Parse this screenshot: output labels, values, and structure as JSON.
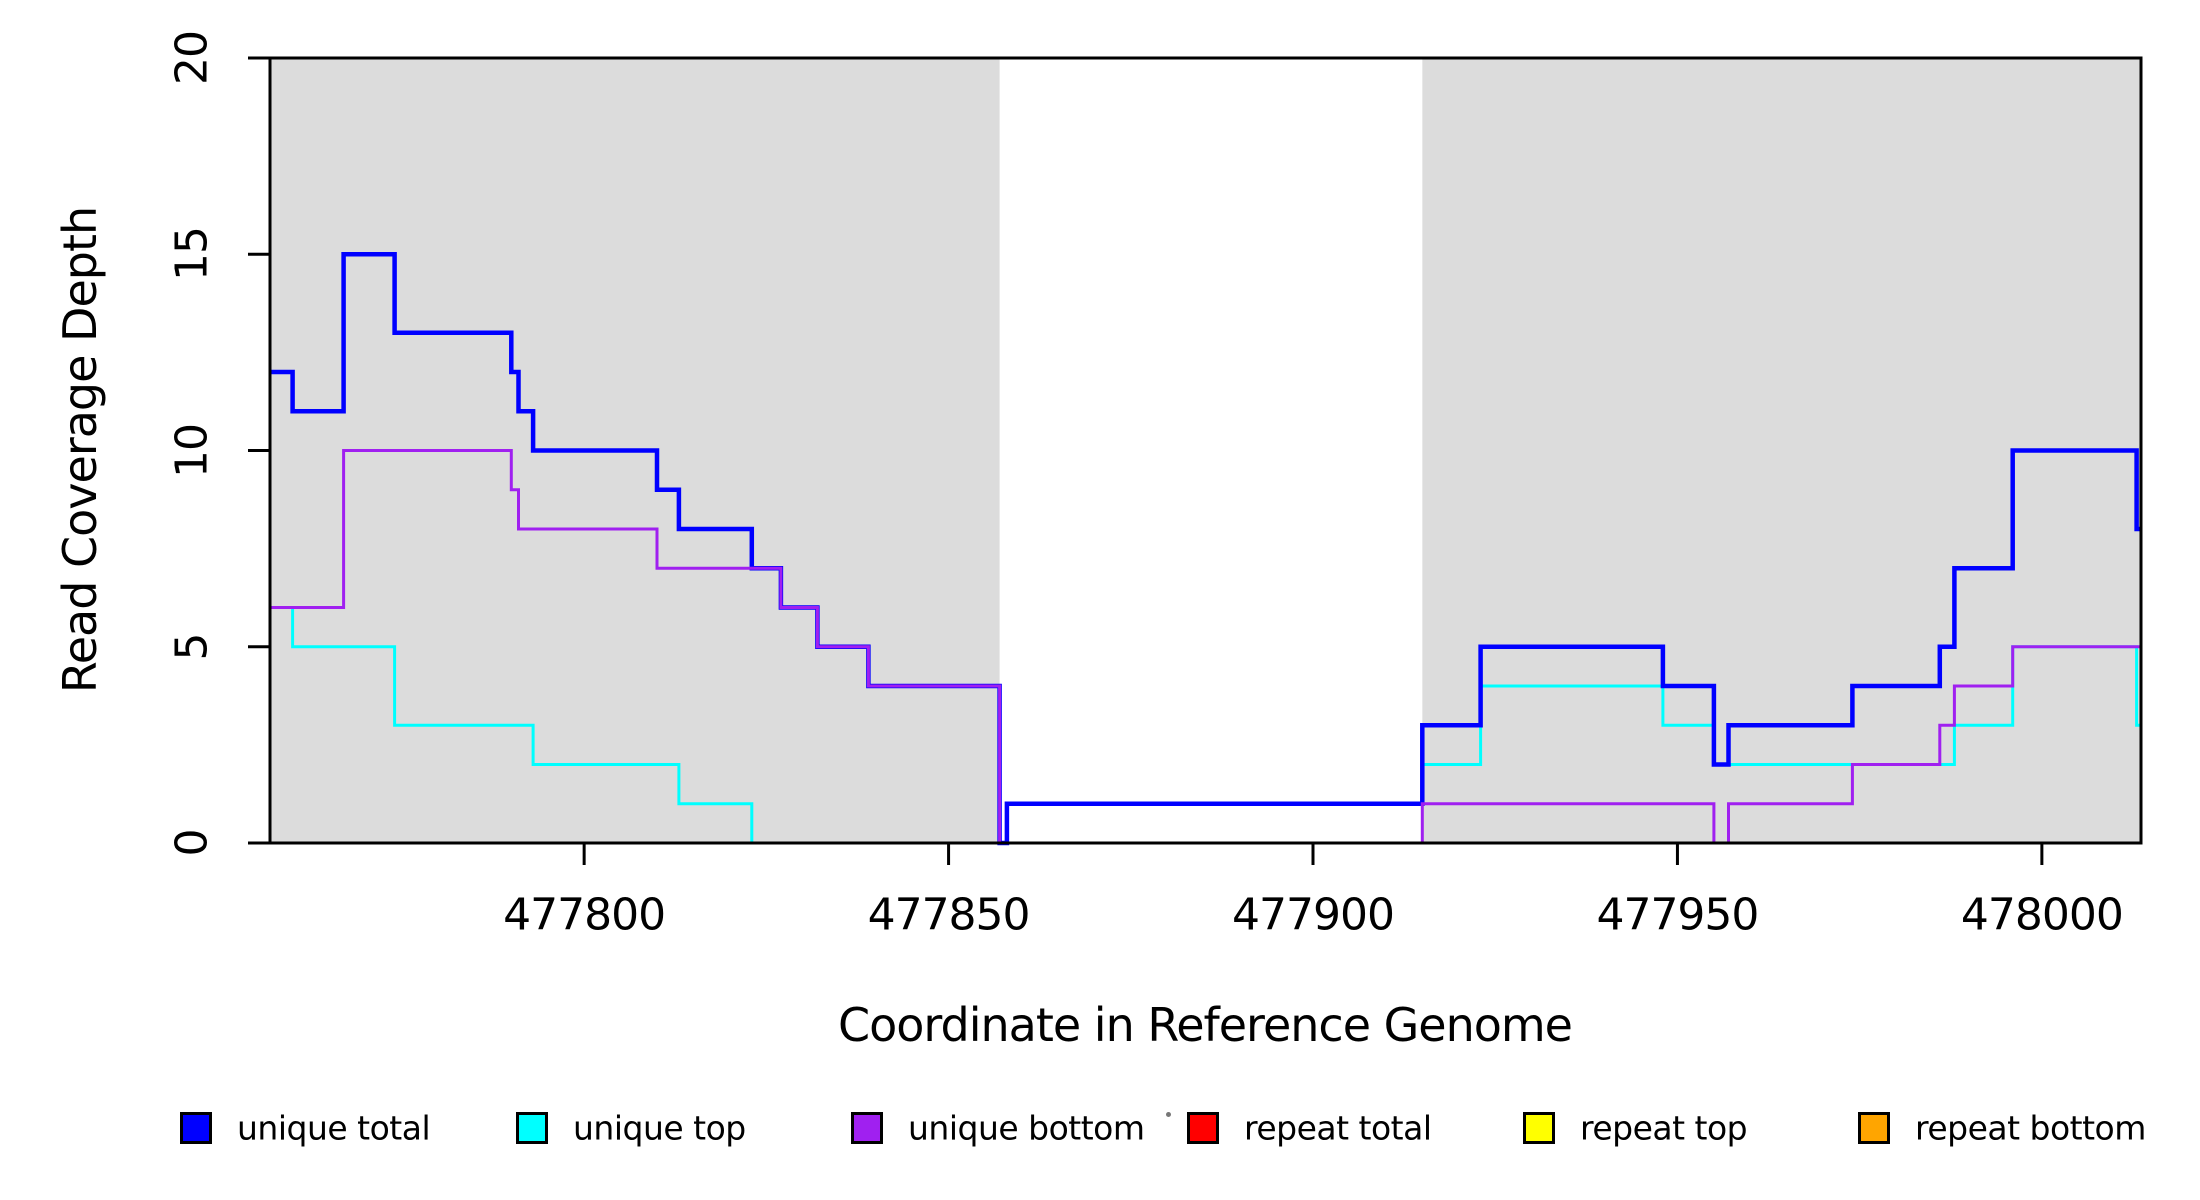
{
  "chart_data": {
    "type": "line",
    "subtype": "step-coverage",
    "title": "",
    "xlabel": "Coordinate in Reference Genome",
    "ylabel": "Read Coverage Depth",
    "xlim": [
      477756.9,
      478013.6
    ],
    "ylim": [
      0,
      20
    ],
    "grid": false,
    "x_ticks": [
      477800,
      477850,
      477900,
      477950,
      478000
    ],
    "x_tick_labels": [
      "477800",
      "477850",
      "477900",
      "477950",
      "478000"
    ],
    "y_ticks": [
      0,
      5,
      10,
      15,
      20
    ],
    "y_tick_labels": [
      "0",
      "5",
      "10",
      "15",
      "20"
    ],
    "shaded_regions": {
      "color": "#DCDCDC",
      "note": "uniquely-mappable regions shaded gray; middle gap is unshaded",
      "bands": [
        [
          477756.9,
          477857
        ],
        [
          477915,
          478013.6
        ]
      ]
    },
    "draw_order": [
      "unique_top",
      "unique_total",
      "repeat_total",
      "repeat_top",
      "repeat_bottom",
      "unique_bottom"
    ],
    "series": {
      "unique_total": {
        "legend_label": "unique total",
        "color": "#0000FF",
        "line_width": 4.5,
        "end_x": 478013.6,
        "points": [
          [
            477756.9,
            12
          ],
          [
            477760,
            11
          ],
          [
            477767,
            15
          ],
          [
            477774,
            13
          ],
          [
            477790,
            12
          ],
          [
            477791,
            11
          ],
          [
            477793,
            10
          ],
          [
            477810,
            9
          ],
          [
            477813,
            8
          ],
          [
            477823,
            7
          ],
          [
            477827,
            6
          ],
          [
            477832,
            5
          ],
          [
            477839,
            4
          ],
          [
            477857,
            0
          ],
          [
            477858,
            1
          ],
          [
            477915,
            3
          ],
          [
            477923,
            5
          ],
          [
            477948,
            4
          ],
          [
            477955,
            2
          ],
          [
            477957,
            3
          ],
          [
            477974,
            4
          ],
          [
            477986,
            5
          ],
          [
            477988,
            7
          ],
          [
            477996,
            10
          ],
          [
            478013,
            8
          ]
        ]
      },
      "unique_top": {
        "legend_label": "unique top",
        "color": "#00FFFF",
        "line_width": 3,
        "end_x": 478013.6,
        "points": [
          [
            477756.9,
            6
          ],
          [
            477760,
            5
          ],
          [
            477774,
            3
          ],
          [
            477793,
            2
          ],
          [
            477813,
            1
          ],
          [
            477823,
            0
          ],
          [
            477858,
            1
          ],
          [
            477915,
            2
          ],
          [
            477923,
            4
          ],
          [
            477948,
            3
          ],
          [
            477955,
            2
          ],
          [
            477988,
            3
          ],
          [
            477996,
            5
          ],
          [
            478013,
            3
          ]
        ]
      },
      "unique_bottom": {
        "legend_label": "unique bottom",
        "color": "#A020F0",
        "line_width": 3,
        "end_x": 478013.6,
        "points": [
          [
            477756.9,
            6
          ],
          [
            477767,
            10
          ],
          [
            477790,
            9
          ],
          [
            477791,
            8
          ],
          [
            477810,
            7
          ],
          [
            477827,
            6
          ],
          [
            477832,
            5
          ],
          [
            477839,
            4
          ],
          [
            477857,
            0
          ],
          [
            477915,
            1
          ],
          [
            477955,
            0
          ],
          [
            477957,
            1
          ],
          [
            477974,
            2
          ],
          [
            477986,
            3
          ],
          [
            477988,
            4
          ],
          [
            477996,
            5
          ]
        ]
      },
      "repeat_total": {
        "legend_label": "repeat total",
        "color": "#FF0000",
        "line_width": 3,
        "end_x": 478013.6,
        "points": [
          [
            477756.9,
            0
          ]
        ]
      },
      "repeat_top": {
        "legend_label": "repeat top",
        "color": "#FFFF00",
        "line_width": 3,
        "end_x": 478013.6,
        "points": [
          [
            477756.9,
            0
          ]
        ]
      },
      "repeat_bottom": {
        "legend_label": "repeat bottom",
        "color": "#FFA500",
        "line_width": 3,
        "end_x": 478013.6,
        "points": [
          [
            477756.9,
            0
          ]
        ]
      }
    },
    "legend": {
      "position": "bottom",
      "items": [
        {
          "label": "unique total",
          "color": "#0000FF"
        },
        {
          "label": "unique top",
          "color": "#00FFFF"
        },
        {
          "label": "unique bottom",
          "color": "#A020F0"
        },
        {
          "label": "repeat total",
          "color": "#FF0000"
        },
        {
          "label": "repeat top",
          "color": "#FFFF00"
        },
        {
          "label": "repeat bottom",
          "color": "#FFA500"
        }
      ]
    },
    "axis_color": "#000000"
  }
}
